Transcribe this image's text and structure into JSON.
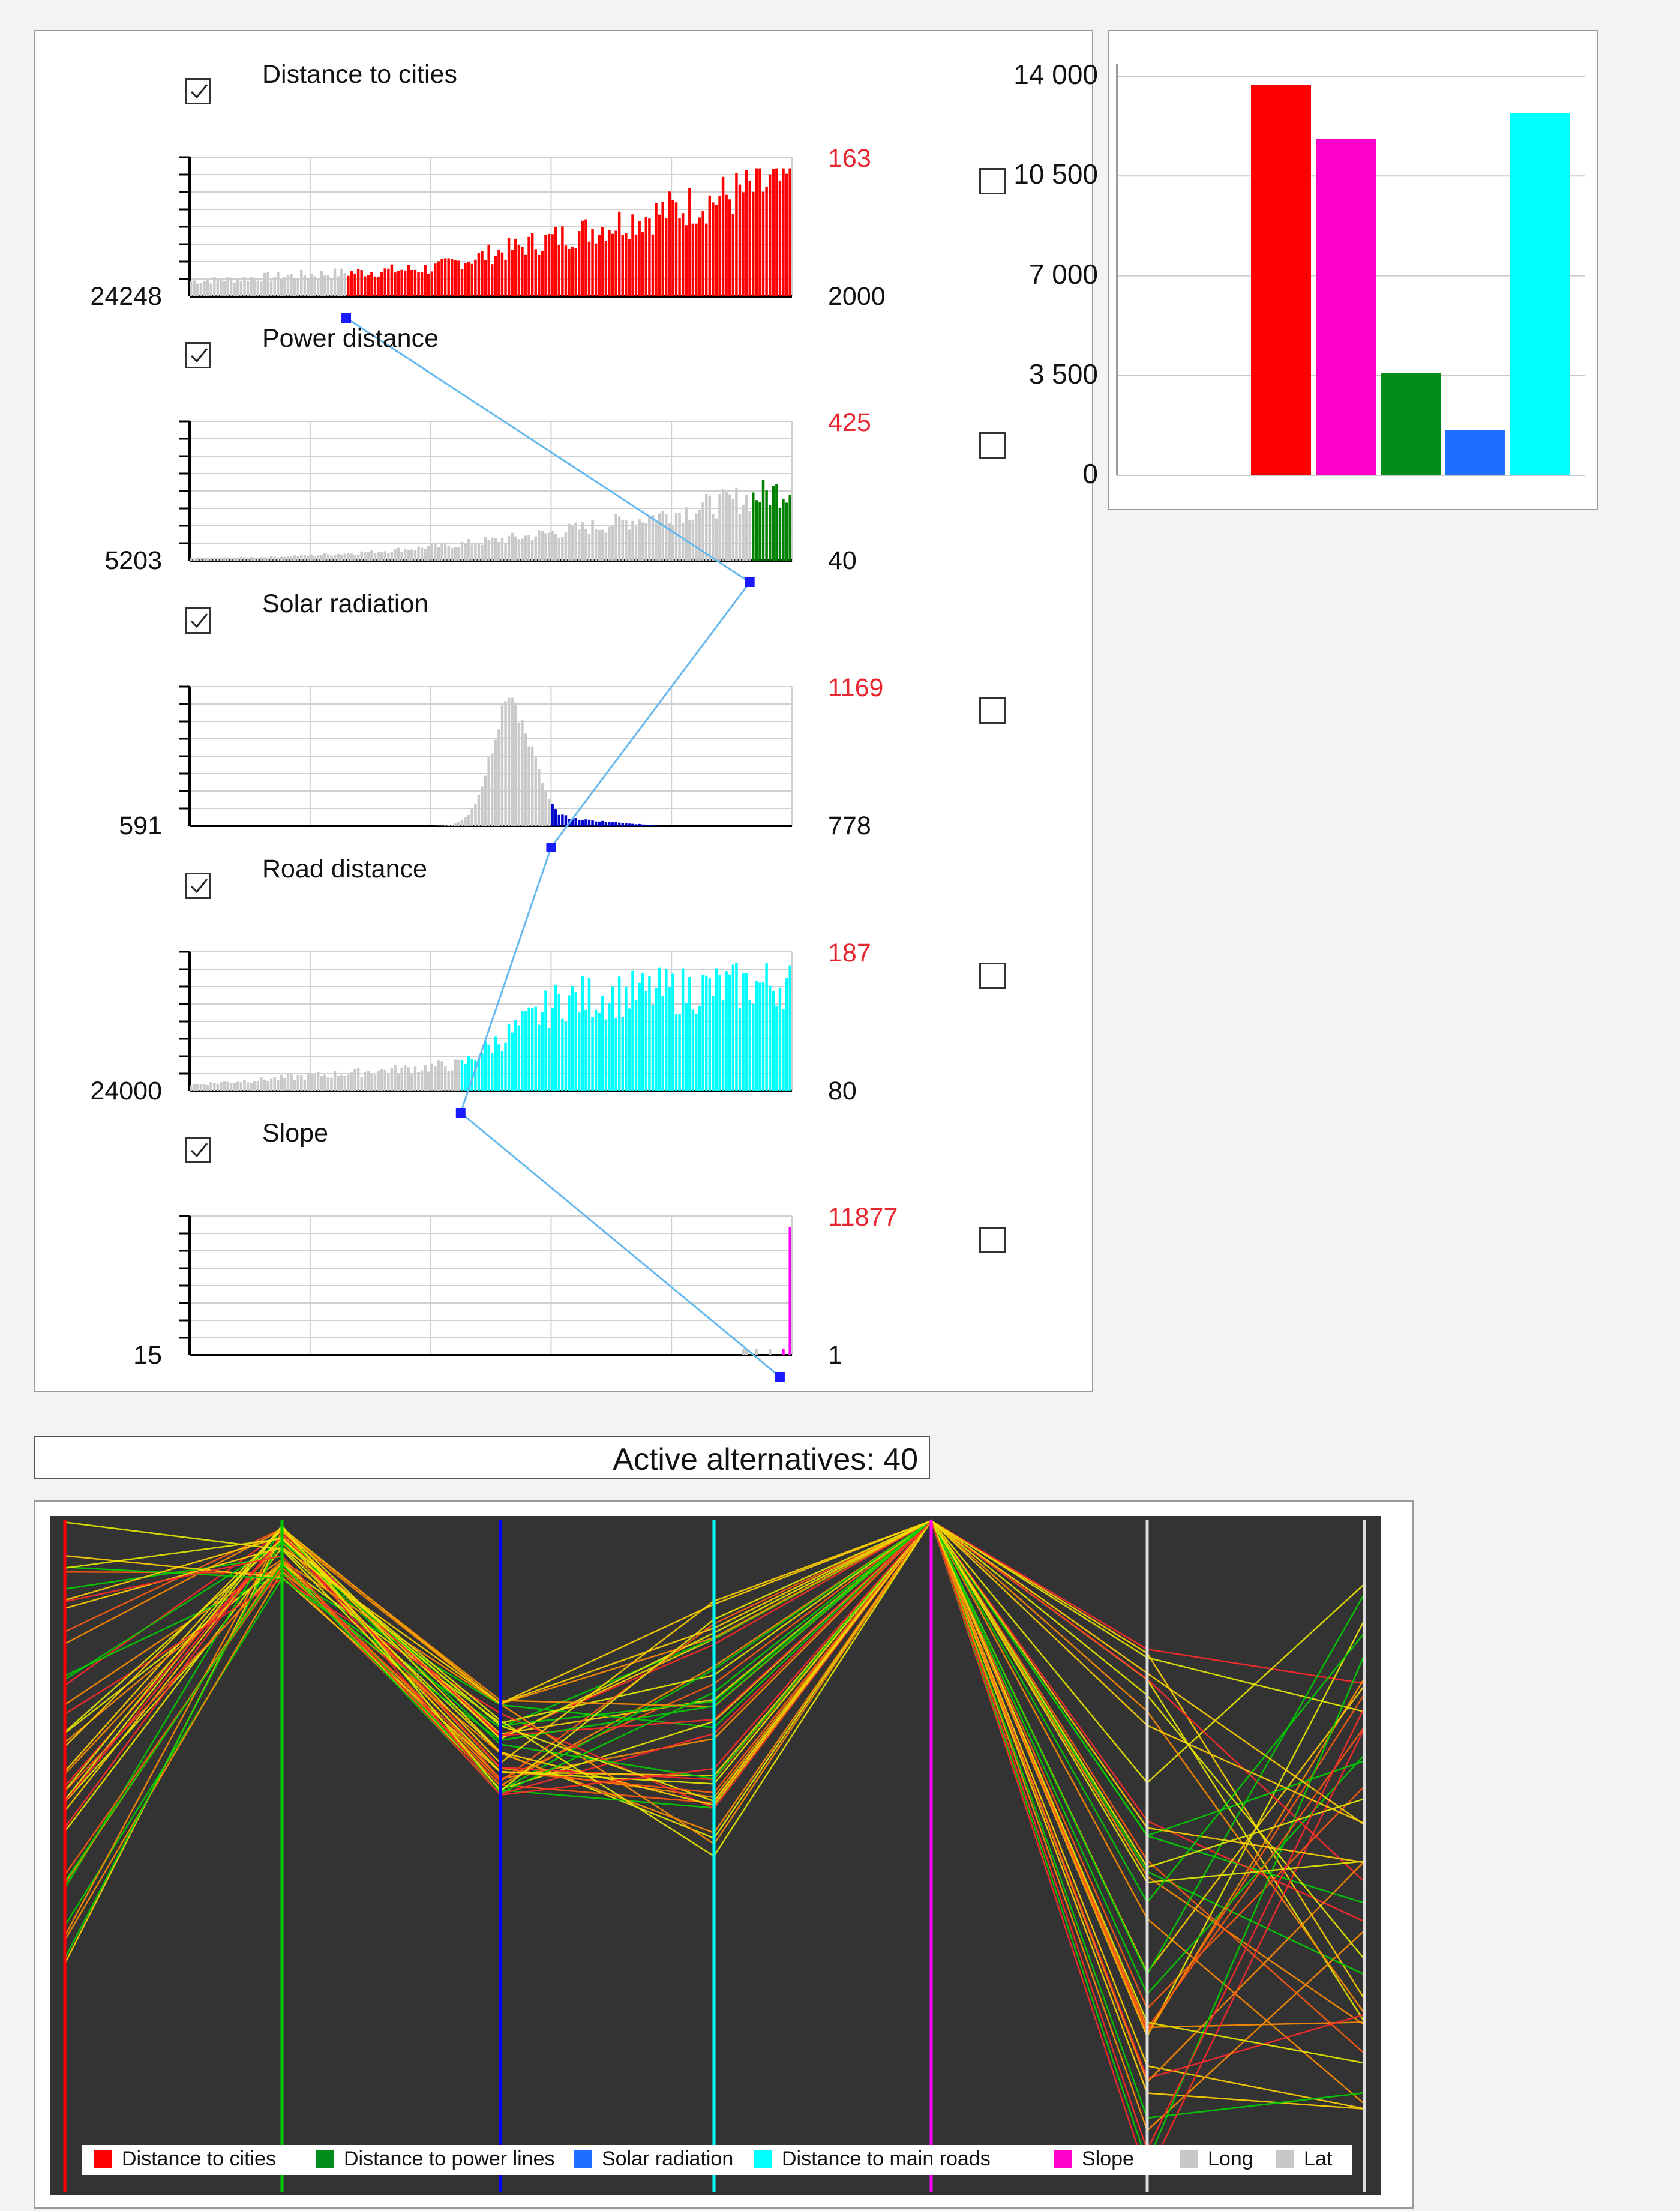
{
  "criteria": [
    {
      "name": "Distance to cities",
      "left": "24248",
      "right": "2000",
      "max": "163",
      "checked": true,
      "color": "#ff0000"
    },
    {
      "name": "Power distance",
      "left": "5203",
      "right": "40",
      "max": "425",
      "checked": true,
      "color": "#008000"
    },
    {
      "name": "Solar radiation",
      "left": "591",
      "right": "778",
      "max": "1169",
      "checked": true,
      "color": "#0000cc"
    },
    {
      "name": "Road distance",
      "left": "24000",
      "right": "80",
      "max": "187",
      "checked": true,
      "color": "#00ffff"
    },
    {
      "name": "Slope",
      "left": "15",
      "right": "1",
      "max": "11877",
      "checked": true,
      "color": "#ff00ff"
    }
  ],
  "status": {
    "active_label": "Active alternatives: 40"
  },
  "chart_data": [
    {
      "type": "bar",
      "categories": [
        "Distance to cities",
        "Distance to power lines",
        "Solar radiation",
        "Distance to main roads",
        "Slope"
      ],
      "values": [
        13700,
        11800,
        3600,
        1600,
        12700
      ],
      "colors": [
        "#ff0000",
        "#ff00cc",
        "#008c1a",
        "#1e6fff",
        "#00ffff"
      ],
      "yticks": [
        "14 000",
        "10 500",
        "7 000",
        "3 500",
        "0"
      ],
      "ylim": [
        0,
        14000
      ]
    },
    {
      "type": "parallel-coordinates",
      "axes": [
        "Distance to cities",
        "Distance to power lines",
        "Solar radiation",
        "Distance to main roads",
        "Slope",
        "Long",
        "Lat"
      ],
      "axis_colors": [
        "#ff0000",
        "#00cc00",
        "#0000ff",
        "#00ffff",
        "#ff00ff",
        "#dddddd",
        "#dddddd"
      ],
      "legend": [
        {
          "label": "Distance to cities",
          "color": "#ff0000"
        },
        {
          "label": "Distance to power lines",
          "color": "#008c1a"
        },
        {
          "label": "Solar radiation",
          "color": "#1e6fff"
        },
        {
          "label": "Distance to main roads",
          "color": "#00ffff"
        },
        {
          "label": "Slope",
          "color": "#ff00cc"
        },
        {
          "label": "Long",
          "color": "#c8c8c8"
        },
        {
          "label": "Lat",
          "color": "#c8c8c8"
        }
      ],
      "background": "#333333"
    }
  ]
}
